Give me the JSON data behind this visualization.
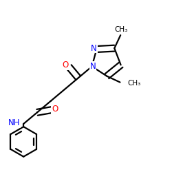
{
  "bg_color": "#ffffff",
  "bond_color": "#000000",
  "bond_width": 1.6,
  "dbo": 0.018,
  "atom_colors": {
    "O": "#ff0000",
    "N": "#0000ff",
    "C": "#000000"
  },
  "figsize": [
    2.5,
    2.5
  ],
  "dpi": 100,
  "xlim": [
    0.0,
    1.0
  ],
  "ylim": [
    0.0,
    1.0
  ]
}
